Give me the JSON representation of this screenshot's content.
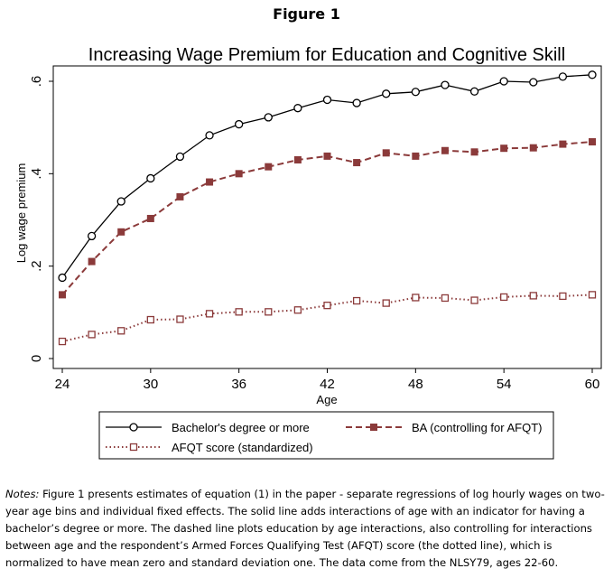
{
  "figure_label": "Figure 1",
  "chart_data": {
    "type": "line",
    "title": "Increasing Wage Premium for Education and Cognitive Skill",
    "xlabel": "Age",
    "ylabel": "Log wage premium",
    "xlim": [
      24,
      60
    ],
    "ylim": [
      0,
      0.6
    ],
    "x_ticks": [
      24,
      30,
      36,
      42,
      48,
      54,
      60
    ],
    "x_tick_labels": [
      "24",
      "30",
      "36",
      "42",
      "48",
      "54",
      "60"
    ],
    "y_ticks": [
      0,
      0.2,
      0.4,
      0.6
    ],
    "y_tick_labels": [
      "0",
      ".2",
      ".4",
      ".6"
    ],
    "grid": false,
    "legend_position": "bottom",
    "x": [
      24,
      26,
      28,
      30,
      32,
      34,
      36,
      38,
      40,
      42,
      44,
      46,
      48,
      50,
      52,
      54,
      56,
      58,
      60
    ],
    "series": [
      {
        "name": "Bachelor's degree or more",
        "style": "solid",
        "marker": "hollow-circle",
        "color": "#000000",
        "values": [
          0.175,
          0.265,
          0.34,
          0.39,
          0.437,
          0.483,
          0.507,
          0.522,
          0.542,
          0.56,
          0.553,
          0.573,
          0.577,
          0.592,
          0.578,
          0.6,
          0.598,
          0.61,
          0.614
        ]
      },
      {
        "name": "BA (controlling for AFQT)",
        "style": "dashed",
        "marker": "filled-square",
        "color": "#8b3a3a",
        "values": [
          0.138,
          0.21,
          0.274,
          0.303,
          0.35,
          0.382,
          0.4,
          0.415,
          0.43,
          0.438,
          0.424,
          0.445,
          0.438,
          0.45,
          0.447,
          0.455,
          0.456,
          0.464,
          0.469
        ]
      },
      {
        "name": "AFQT score (standardized)",
        "style": "dotted",
        "marker": "hollow-square",
        "color": "#8b3a3a",
        "values": [
          0.037,
          0.052,
          0.06,
          0.084,
          0.085,
          0.097,
          0.101,
          0.101,
          0.105,
          0.115,
          0.125,
          0.12,
          0.132,
          0.131,
          0.126,
          0.133,
          0.136,
          0.135,
          0.138
        ]
      }
    ]
  },
  "notes": {
    "label": "Notes:",
    "text": " Figure 1 presents estimates of equation (1) in the paper - separate regressions of log hourly wages on two-year age bins and individual fixed effects. The solid line adds interactions of age with an indicator for having a bachelor’s degree or more. The dashed line plots education by age interactions, also controlling for interactions between age and the respondent’s Armed Forces Qualifying Test (AFQT) score (the dotted line), which is normalized to have mean zero and standard deviation one. The data come from the NLSY79, ages 22-60."
  }
}
